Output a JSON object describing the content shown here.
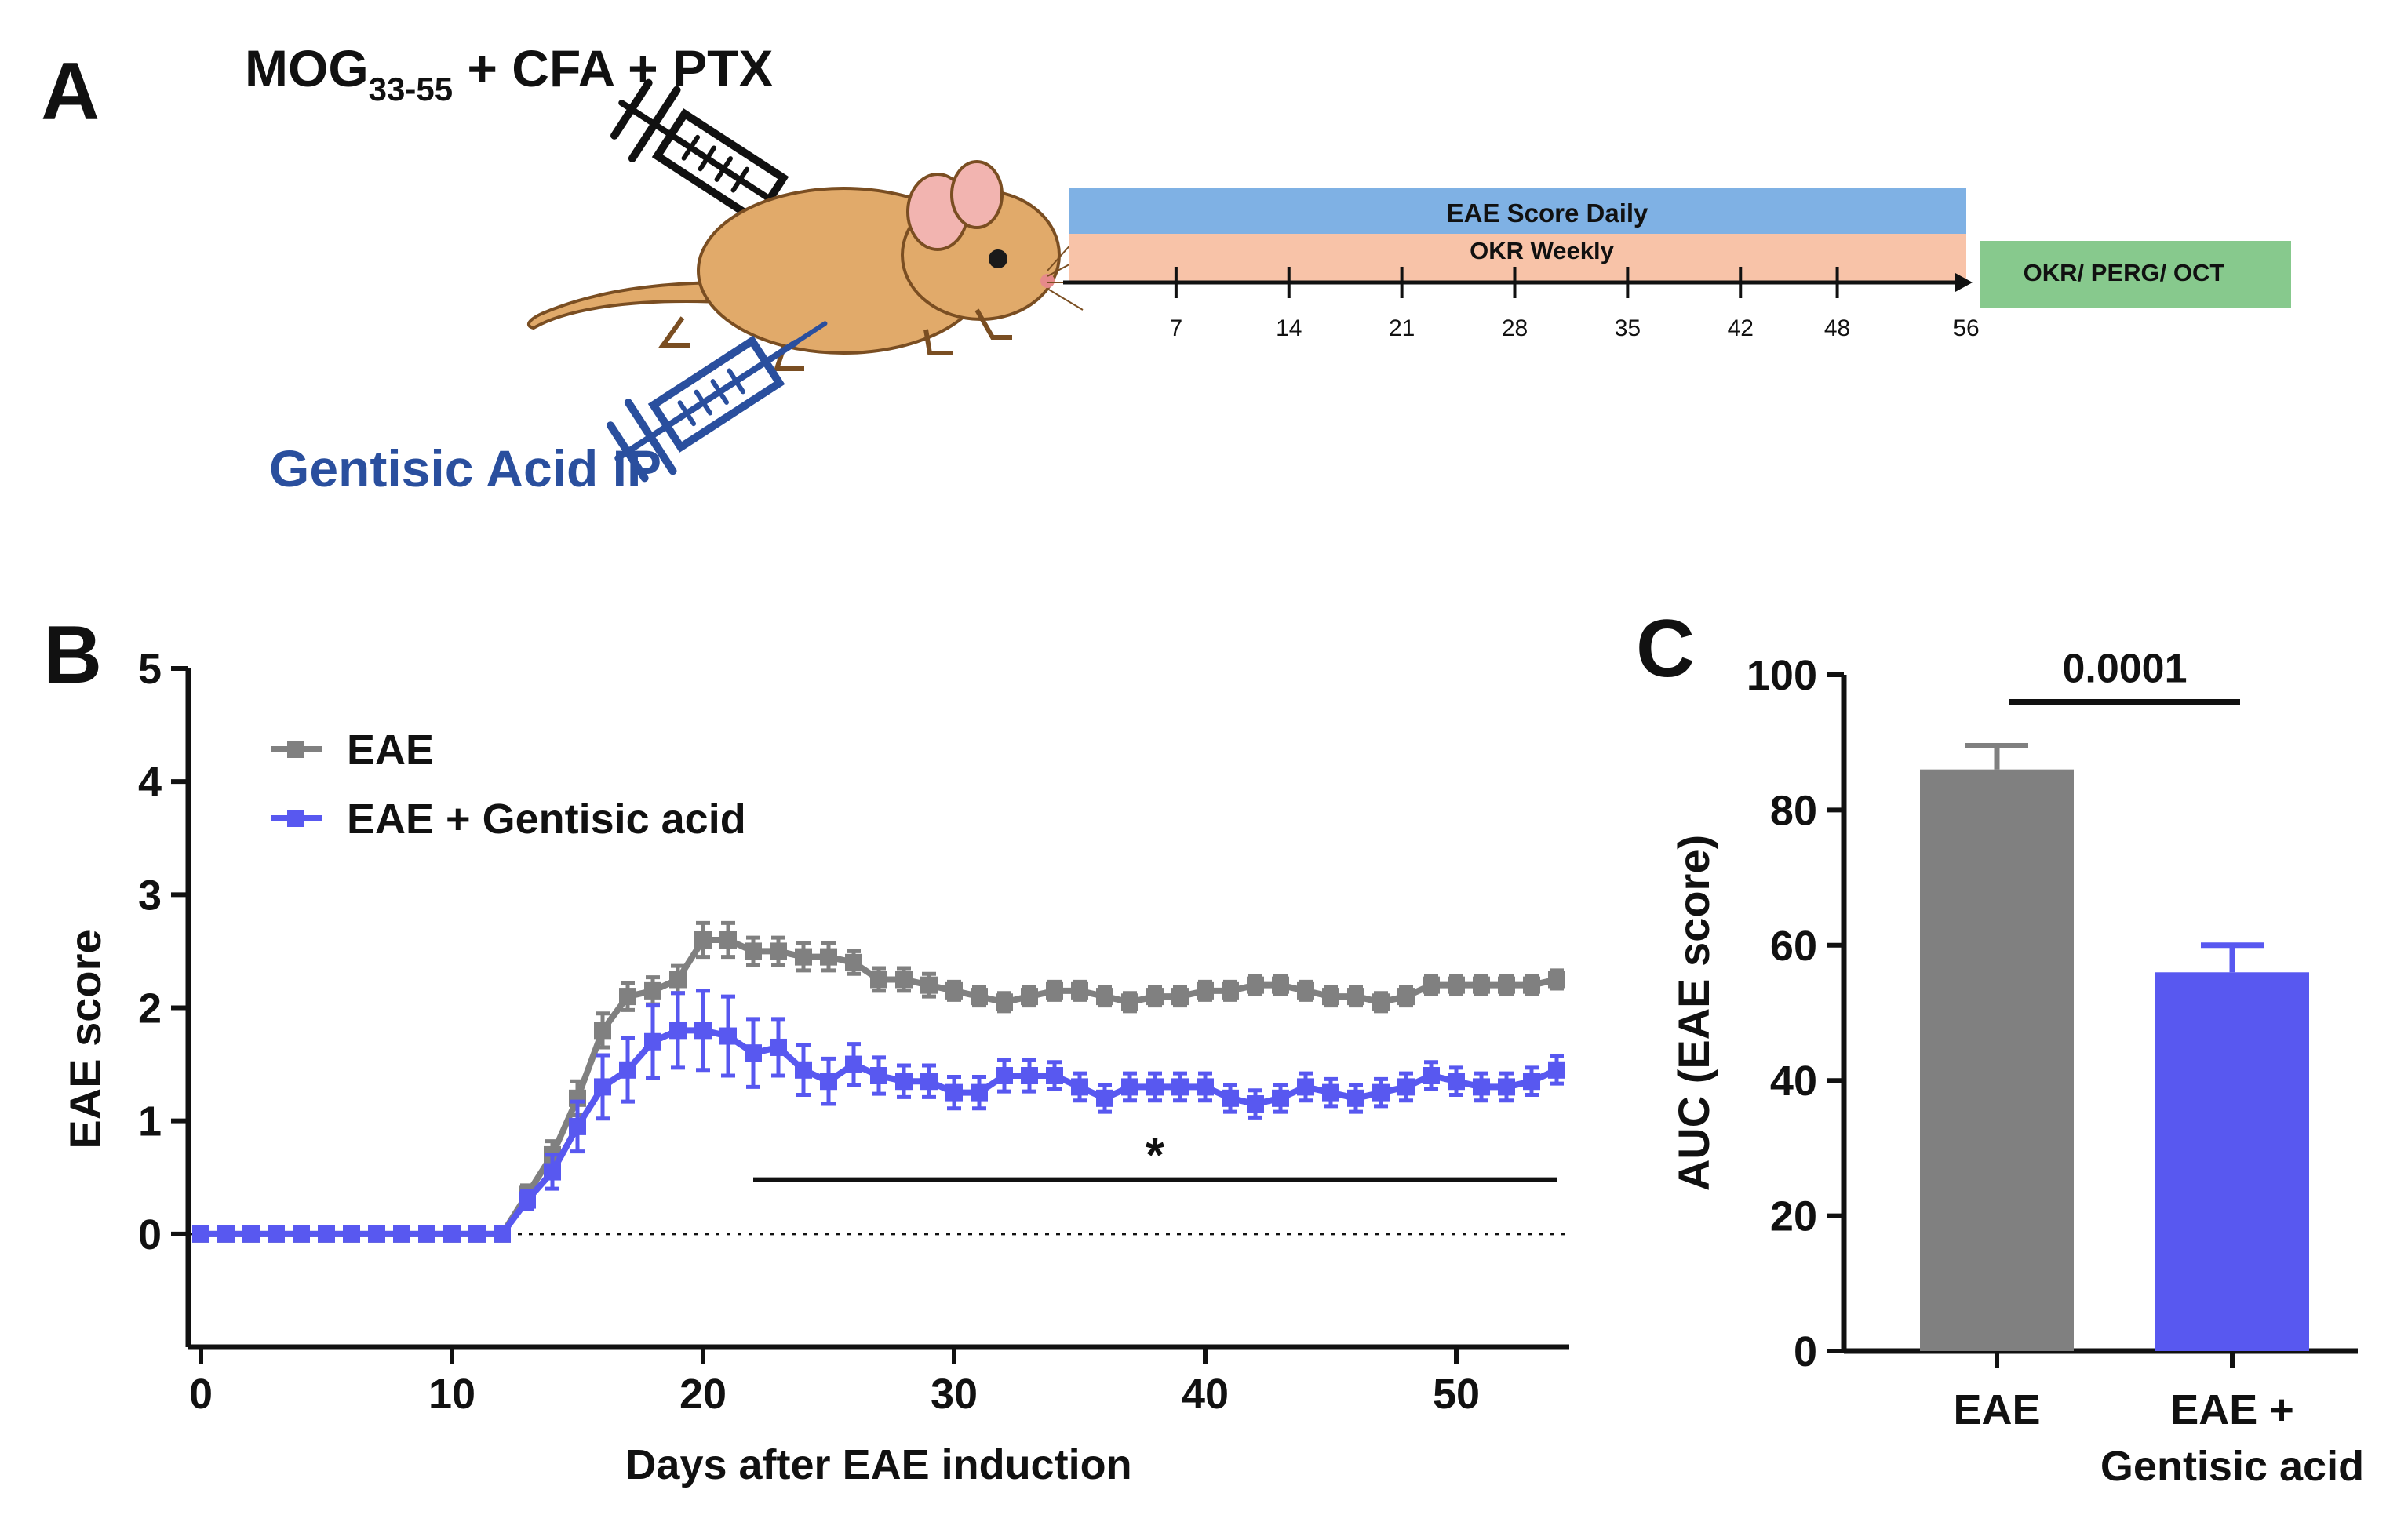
{
  "panel_a": {
    "letter": "A",
    "injection_top": {
      "base": "MOG",
      "subscript": "33-55",
      "rest": " + CFA + PTX"
    },
    "injection_bottom": "Gentisic Acid IP",
    "bar_eae": "EAE Score Daily",
    "bar_okr": "OKR Weekly",
    "box_final": "OKR/ PERG/ OCT",
    "ticks": [
      "7",
      "14",
      "21",
      "28",
      "35",
      "42",
      "48",
      "56"
    ],
    "colors": {
      "eae_bar": "#7fb1e4",
      "okr_bar": "#f8c3a8",
      "final_box": "#87c98d",
      "syringe_top": "#111111",
      "syringe_bottom": "#2a4f9e",
      "mouse_body": "#e1aa6a",
      "mouse_outline": "#7a4e22",
      "mouse_ear": "#f2b4b0"
    }
  },
  "chart_data": [
    {
      "panel": "B",
      "type": "line",
      "xlabel": "Days after EAE induction",
      "ylabel": "EAE score",
      "xlim": [
        -0.5,
        54.5
      ],
      "ylim": [
        -1,
        5
      ],
      "xticks": [
        "0",
        "10",
        "20",
        "30",
        "40",
        "50"
      ],
      "yticks": [
        "0",
        "1",
        "2",
        "3",
        "4",
        "5"
      ],
      "legend": "top-left",
      "significance": {
        "label": "*",
        "x_range": [
          22,
          54
        ]
      },
      "series": [
        {
          "name": "EAE",
          "color": "#808080",
          "x": [
            0,
            1,
            2,
            3,
            4,
            5,
            6,
            7,
            8,
            9,
            10,
            11,
            12,
            13,
            14,
            15,
            16,
            17,
            18,
            19,
            20,
            21,
            22,
            23,
            24,
            25,
            26,
            27,
            28,
            29,
            30,
            31,
            32,
            33,
            34,
            35,
            36,
            37,
            38,
            39,
            40,
            41,
            42,
            43,
            44,
            45,
            46,
            47,
            48,
            49,
            50,
            51,
            52,
            53,
            54
          ],
          "values": [
            0,
            0,
            0,
            0,
            0,
            0,
            0,
            0,
            0,
            0,
            0,
            0,
            0,
            0.35,
            0.7,
            1.2,
            1.8,
            2.1,
            2.15,
            2.25,
            2.6,
            2.6,
            2.5,
            2.5,
            2.45,
            2.45,
            2.4,
            2.25,
            2.25,
            2.2,
            2.15,
            2.1,
            2.05,
            2.1,
            2.15,
            2.15,
            2.1,
            2.05,
            2.1,
            2.1,
            2.15,
            2.15,
            2.2,
            2.2,
            2.15,
            2.1,
            2.1,
            2.05,
            2.1,
            2.2,
            2.2,
            2.2,
            2.2,
            2.2,
            2.25
          ],
          "errors": [
            0,
            0,
            0,
            0,
            0,
            0,
            0,
            0,
            0,
            0,
            0,
            0,
            0,
            0.08,
            0.12,
            0.15,
            0.15,
            0.12,
            0.12,
            0.12,
            0.15,
            0.15,
            0.12,
            0.12,
            0.12,
            0.12,
            0.1,
            0.1,
            0.1,
            0.1,
            0.08,
            0.08,
            0.08,
            0.08,
            0.08,
            0.08,
            0.08,
            0.08,
            0.08,
            0.08,
            0.08,
            0.08,
            0.08,
            0.08,
            0.08,
            0.08,
            0.08,
            0.08,
            0.08,
            0.08,
            0.08,
            0.08,
            0.08,
            0.08,
            0.08
          ]
        },
        {
          "name": "EAE + Gentisic acid",
          "color": "#5858f0",
          "x": [
            0,
            1,
            2,
            3,
            4,
            5,
            6,
            7,
            8,
            9,
            10,
            11,
            12,
            13,
            14,
            15,
            16,
            17,
            18,
            19,
            20,
            21,
            22,
            23,
            24,
            25,
            26,
            27,
            28,
            29,
            30,
            31,
            32,
            33,
            34,
            35,
            36,
            37,
            38,
            39,
            40,
            41,
            42,
            43,
            44,
            45,
            46,
            47,
            48,
            49,
            50,
            51,
            52,
            53,
            54
          ],
          "values": [
            0,
            0,
            0,
            0,
            0,
            0,
            0,
            0,
            0,
            0,
            0,
            0,
            0,
            0.3,
            0.55,
            0.95,
            1.3,
            1.45,
            1.7,
            1.8,
            1.8,
            1.75,
            1.6,
            1.65,
            1.45,
            1.35,
            1.5,
            1.4,
            1.35,
            1.35,
            1.25,
            1.25,
            1.4,
            1.4,
            1.4,
            1.3,
            1.2,
            1.3,
            1.3,
            1.3,
            1.3,
            1.2,
            1.15,
            1.2,
            1.3,
            1.25,
            1.2,
            1.25,
            1.3,
            1.4,
            1.35,
            1.3,
            1.3,
            1.35,
            1.45
          ],
          "errors": [
            0,
            0,
            0,
            0,
            0,
            0,
            0,
            0,
            0,
            0,
            0,
            0,
            0,
            0.08,
            0.15,
            0.22,
            0.28,
            0.28,
            0.32,
            0.33,
            0.35,
            0.35,
            0.3,
            0.25,
            0.22,
            0.2,
            0.18,
            0.16,
            0.14,
            0.14,
            0.14,
            0.14,
            0.14,
            0.14,
            0.12,
            0.12,
            0.12,
            0.12,
            0.12,
            0.12,
            0.12,
            0.12,
            0.12,
            0.12,
            0.12,
            0.12,
            0.12,
            0.12,
            0.12,
            0.12,
            0.12,
            0.12,
            0.12,
            0.12,
            0.12
          ]
        }
      ]
    },
    {
      "panel": "C",
      "type": "bar",
      "ylabel": "AUC (EAE score)",
      "ylim": [
        0,
        100
      ],
      "yticks": [
        "0",
        "20",
        "40",
        "60",
        "80",
        "100"
      ],
      "categories": [
        "EAE",
        "EAE + Gentisic acid"
      ],
      "category_lines": [
        [
          "EAE"
        ],
        [
          "EAE +",
          "Gentisic acid"
        ]
      ],
      "values": [
        86,
        56
      ],
      "errors": [
        3.5,
        4
      ],
      "colors": [
        "#808080",
        "#5858f0"
      ],
      "significance": {
        "label": "0.0001"
      }
    }
  ]
}
